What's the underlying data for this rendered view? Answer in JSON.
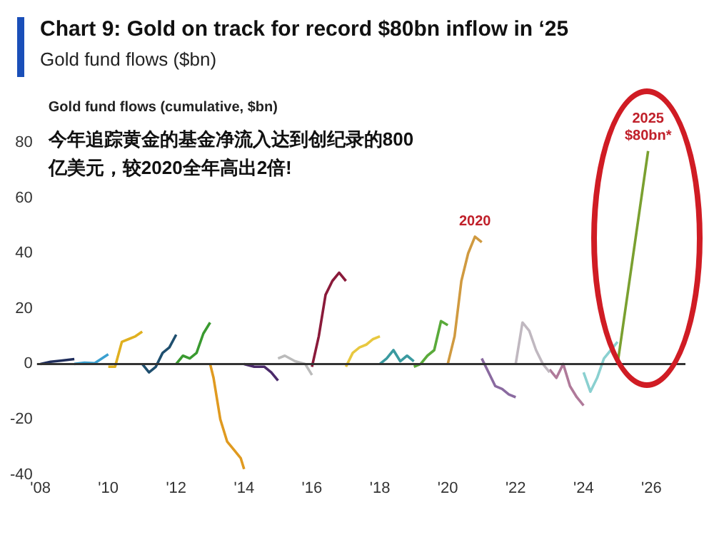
{
  "chart_data": {
    "type": "line",
    "title": "Chart 9: Gold on track for record $80bn inflow in ‘25",
    "subtitle": "Gold fund flows ($bn)",
    "ylabel": "Gold fund flows (cumulative, $bn)",
    "annotations": [
      "今年追踪黄金的基金净流入达到创纪录的800亿美元，较2020全年高出2倍!",
      {
        "text": "2020",
        "x": 2020.8,
        "y": 46
      },
      {
        "text": "2025\n$80bn*",
        "x": 2025.9,
        "y": 77
      }
    ],
    "xlim": [
      2007.9,
      2027
    ],
    "xticks": [
      {
        "value": 2008,
        "label": "'08"
      },
      {
        "value": 2010,
        "label": "'10"
      },
      {
        "value": 2012,
        "label": "'12"
      },
      {
        "value": 2014,
        "label": "'14"
      },
      {
        "value": 2016,
        "label": "'16"
      },
      {
        "value": 2018,
        "label": "'18"
      },
      {
        "value": 2020,
        "label": "'20"
      },
      {
        "value": 2022,
        "label": "'22"
      },
      {
        "value": 2024,
        "label": "'24"
      },
      {
        "value": 2026,
        "label": "'26"
      }
    ],
    "ylim": [
      -40,
      80
    ],
    "yticks": [
      -40,
      -20,
      0,
      20,
      40,
      60,
      80
    ],
    "grid": false,
    "legend": false,
    "marker": "none",
    "line_style": "solid",
    "ref_lines": [
      {
        "axis": "y",
        "value": 0,
        "color": "#333333"
      }
    ],
    "series": [
      {
        "color": "#1f2d5c",
        "x": [
          2008,
          2008.3,
          2008.6,
          2009
        ],
        "values": [
          0,
          0.8,
          1.2,
          1.8
        ]
      },
      {
        "color": "#3aa0d0",
        "x": [
          2009,
          2009.3,
          2009.6,
          2010
        ],
        "values": [
          0,
          0.5,
          0.3,
          3.5
        ]
      },
      {
        "color": "#e0b020",
        "x": [
          2010,
          2010.2,
          2010.4,
          2010.6,
          2010.8,
          2011
        ],
        "values": [
          -1,
          -1,
          8,
          9,
          10,
          11.7
        ]
      },
      {
        "color": "#1f4f6f",
        "x": [
          2011,
          2011.2,
          2011.4,
          2011.6,
          2011.8,
          2012
        ],
        "values": [
          0,
          -3,
          -1,
          4,
          6,
          10.6
        ]
      },
      {
        "color": "#3a9a30",
        "x": [
          2012,
          2012.2,
          2012.4,
          2012.6,
          2012.8,
          2013
        ],
        "values": [
          0,
          3,
          2,
          4,
          11,
          15
        ]
      },
      {
        "color": "#e09a20",
        "x": [
          2013,
          2013.1,
          2013.3,
          2013.5,
          2013.7,
          2013.9,
          2014
        ],
        "values": [
          0,
          -5,
          -20,
          -28,
          -31,
          -34,
          -38
        ]
      },
      {
        "color": "#4a2a6a",
        "x": [
          2014,
          2014.3,
          2014.6,
          2014.8,
          2015
        ],
        "values": [
          0,
          -1,
          -1,
          -3,
          -6
        ]
      },
      {
        "color": "#bbbbbb",
        "x": [
          2015,
          2015.2,
          2015.5,
          2015.8,
          2016
        ],
        "values": [
          2,
          3,
          1,
          0,
          -4
        ]
      },
      {
        "color": "#8a1a3a",
        "x": [
          2016,
          2016.2,
          2016.4,
          2016.6,
          2016.8,
          2017
        ],
        "values": [
          -1,
          10,
          25,
          30,
          33,
          30
        ]
      },
      {
        "color": "#e8c840",
        "x": [
          2017,
          2017.2,
          2017.4,
          2017.6,
          2017.8,
          2018
        ],
        "values": [
          -1,
          4,
          6,
          7,
          9,
          10
        ]
      },
      {
        "color": "#3a9aa0",
        "x": [
          2018,
          2018.2,
          2018.4,
          2018.6,
          2018.8,
          2019
        ],
        "values": [
          0,
          2,
          5,
          1,
          3,
          1
        ]
      },
      {
        "color": "#5aaa3a",
        "x": [
          2019,
          2019.2,
          2019.4,
          2019.6,
          2019.8,
          2020
        ],
        "values": [
          -1,
          0,
          3,
          5,
          15.5,
          14
        ]
      },
      {
        "color": "#d09a40",
        "x": [
          2020,
          2020.2,
          2020.4,
          2020.6,
          2020.8,
          2021
        ],
        "values": [
          0,
          10,
          30,
          40,
          46,
          44
        ]
      },
      {
        "color": "#8a6aa0",
        "x": [
          2021,
          2021.2,
          2021.4,
          2021.6,
          2021.8,
          2022
        ],
        "values": [
          2,
          -3,
          -8,
          -9,
          -11,
          -12
        ]
      },
      {
        "color": "#c0b8c0",
        "x": [
          2022,
          2022.2,
          2022.4,
          2022.6,
          2022.8,
          2023
        ],
        "values": [
          0,
          15,
          12,
          5,
          0,
          -3
        ]
      },
      {
        "color": "#b07a9a",
        "x": [
          2023,
          2023.2,
          2023.4,
          2023.6,
          2023.8,
          2024
        ],
        "values": [
          -2,
          -5,
          0,
          -8,
          -12,
          -15
        ]
      },
      {
        "color": "#8ad0d0",
        "x": [
          2024,
          2024.2,
          2024.4,
          2024.6,
          2024.8,
          2025
        ],
        "values": [
          -3,
          -10,
          -5,
          2,
          5,
          8
        ]
      },
      {
        "color": "#7aa030",
        "x": [
          2025,
          2025.9
        ],
        "values": [
          0,
          77
        ]
      }
    ]
  }
}
